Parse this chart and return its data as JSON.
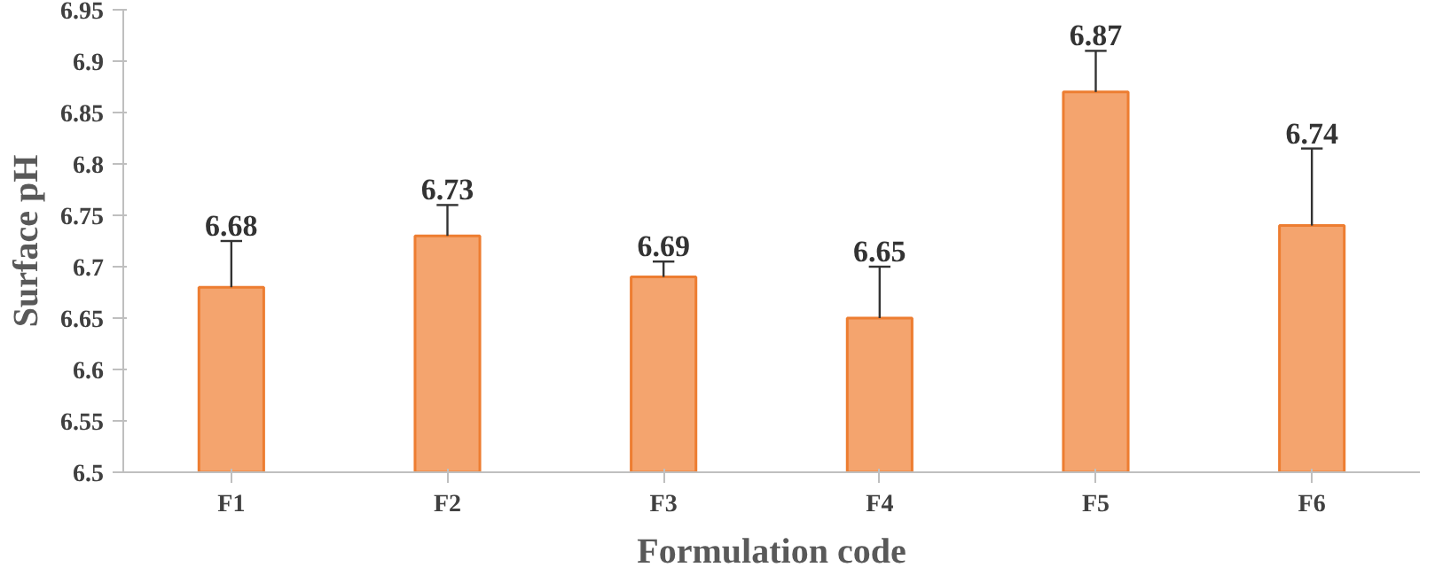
{
  "chart_data": {
    "type": "bar",
    "xlabel": "Formulation code",
    "ylabel": "Surface pH",
    "categories": [
      "F1",
      "F2",
      "F3",
      "F4",
      "F5",
      "F6"
    ],
    "values": [
      6.68,
      6.73,
      6.69,
      6.65,
      6.87,
      6.74
    ],
    "errors": [
      0.045,
      0.03,
      0.015,
      0.05,
      0.04,
      0.075
    ],
    "color": "#f4a46e",
    "data_labels": true,
    "grid": false,
    "ylim": [
      6.5,
      6.95
    ],
    "yticks": [
      6.5,
      6.55,
      6.6,
      6.65,
      6.7,
      6.75,
      6.8,
      6.85,
      6.9,
      6.95
    ]
  }
}
